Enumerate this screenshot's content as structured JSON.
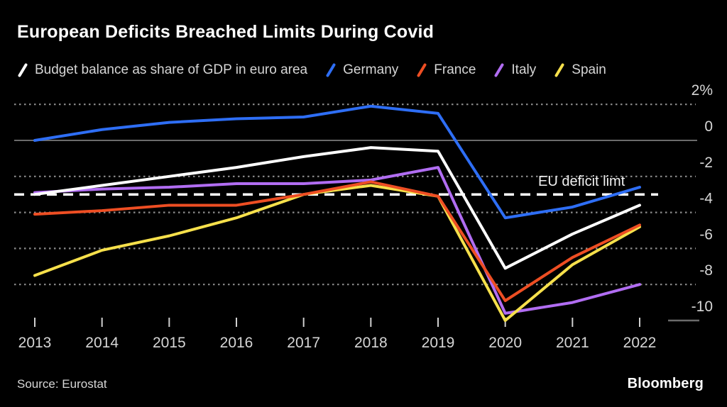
{
  "header": {
    "title": "European Deficits Breached Limits During Covid"
  },
  "chart_data": {
    "type": "line",
    "x": [
      "2013",
      "2014",
      "2015",
      "2016",
      "2017",
      "2018",
      "2019",
      "2020",
      "2021",
      "2022"
    ],
    "series": [
      {
        "name": "Budget balance as share of GDP in euro area",
        "slug": "euro-area",
        "color": "#ffffff",
        "values": [
          -3.0,
          -2.5,
          -2.0,
          -1.5,
          -0.9,
          -0.4,
          -0.6,
          -7.1,
          -5.2,
          -3.6
        ]
      },
      {
        "name": "Germany",
        "slug": "germany",
        "color": "#2e6ef5",
        "values": [
          0.0,
          0.6,
          1.0,
          1.2,
          1.3,
          1.9,
          1.5,
          -4.3,
          -3.7,
          -2.6
        ]
      },
      {
        "name": "France",
        "slug": "france",
        "color": "#ee4e23",
        "values": [
          -4.1,
          -3.9,
          -3.6,
          -3.6,
          -3.0,
          -2.3,
          -3.1,
          -8.9,
          -6.5,
          -4.7
        ]
      },
      {
        "name": "Italy",
        "slug": "italy",
        "color": "#b16df2",
        "values": [
          -2.9,
          -2.7,
          -2.6,
          -2.4,
          -2.4,
          -2.2,
          -1.5,
          -9.6,
          -9.0,
          -8.0
        ]
      },
      {
        "name": "Spain",
        "slug": "spain",
        "color": "#f6e04b",
        "values": [
          -7.5,
          -6.1,
          -5.3,
          -4.3,
          -3.0,
          -2.5,
          -3.1,
          -10.0,
          -6.9,
          -4.8
        ]
      }
    ],
    "draw_order": [
      3,
      4,
      2,
      1,
      0
    ],
    "yticks": [
      {
        "label": "2%",
        "value": 2,
        "style": "dotted"
      },
      {
        "label": "0",
        "value": 0,
        "style": "solid"
      },
      {
        "label": "-2",
        "value": -2,
        "style": "dotted"
      },
      {
        "label": "-4",
        "value": -4,
        "style": "dotted"
      },
      {
        "label": "-6",
        "value": -6,
        "style": "dotted"
      },
      {
        "label": "-8",
        "value": -8,
        "style": "dotted"
      },
      {
        "label": "-10",
        "value": -10,
        "style": "baseline-stub"
      }
    ],
    "ylim": [
      -11.3,
      2.6
    ],
    "reference_line": {
      "label": "EU deficit limt",
      "value": -3,
      "style": "dashed",
      "color": "#ffffff"
    },
    "grid": "horizontal-dotted",
    "legend_position": "top",
    "colors": {
      "background": "#000000",
      "axis_text": "#d6d6d6",
      "grid_dotted": "#8c8c8c",
      "zero_line": "#6b6b6b",
      "tick": "#d0d0d0"
    }
  },
  "footer": {
    "source": "Source: Eurostat",
    "brand": "Bloomberg"
  }
}
